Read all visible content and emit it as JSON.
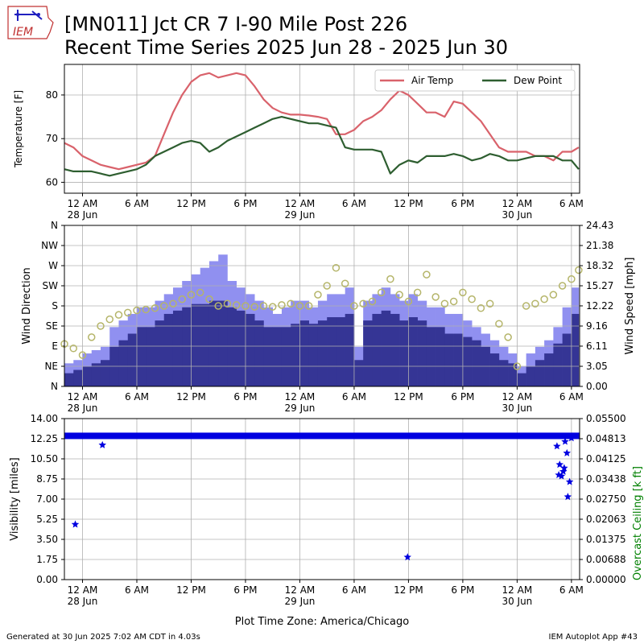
{
  "header": {
    "title_line1": "[MN011] Jct CR 7 I-90 Mile Post 226",
    "title_line2": "Recent Time Series 2025 Jun 28 - 2025 Jun 30",
    "logo_text": "IEM"
  },
  "footer": {
    "generated": "Generated at 30 Jun 2025 7:02 AM CDT in 4.03s",
    "app": "IEM Autoplot App #43",
    "xlabel": "Plot Time Zone: America/Chicago"
  },
  "colors": {
    "air_temp": "#d9626b",
    "dew_point": "#2e5e30",
    "wind_gust": "#9090f0",
    "wind_speed": "#353595",
    "wind_dir": "#b5b56a",
    "visibility": "#0000e0",
    "ceiling_axis": "#008000",
    "grid": "#b0b0b0"
  },
  "chart_data": [
    {
      "type": "line",
      "id": "temperature",
      "ylabel": "Temperature [F]",
      "yticks": [
        60,
        70,
        80
      ],
      "ylim": [
        57.5,
        87
      ],
      "xlim_hours": [
        -2,
        54.9
      ],
      "xticks": [
        {
          "h": 0,
          "label": "12 AM",
          "sub": "28 Jun"
        },
        {
          "h": 6,
          "label": "6 AM"
        },
        {
          "h": 12,
          "label": "12 PM"
        },
        {
          "h": 18,
          "label": "6 PM"
        },
        {
          "h": 24,
          "label": "12 AM",
          "sub": "29 Jun"
        },
        {
          "h": 30,
          "label": "6 AM"
        },
        {
          "h": 36,
          "label": "12 PM"
        },
        {
          "h": 42,
          "label": "6 PM"
        },
        {
          "h": 48,
          "label": "12 AM",
          "sub": "30 Jun"
        },
        {
          "h": 54,
          "label": "6 AM"
        }
      ],
      "legend": {
        "position": "upper right",
        "ncol": 2
      },
      "series": [
        {
          "name": "Air Temp",
          "x": [
            -2,
            -1,
            0,
            1,
            2,
            3,
            4,
            5,
            6,
            7,
            8,
            9,
            10,
            11,
            12,
            13,
            14,
            15,
            16,
            17,
            18,
            19,
            20,
            21,
            22,
            23,
            24,
            25,
            26,
            27,
            28,
            29,
            30,
            31,
            32,
            33,
            34,
            35,
            36,
            37,
            38,
            39,
            40,
            41,
            42,
            43,
            44,
            45,
            46,
            47,
            48,
            49,
            50,
            51,
            52,
            53,
            54,
            54.8
          ],
          "y": [
            69,
            68,
            66,
            65,
            64,
            63.5,
            63,
            63.5,
            64,
            64.5,
            66,
            71,
            76,
            80,
            83,
            84.5,
            85,
            84,
            84.5,
            85,
            84.5,
            82,
            79,
            77,
            76,
            75.5,
            75.5,
            75.3,
            75,
            74.5,
            71,
            71,
            72,
            74,
            75,
            76.5,
            79,
            81,
            80,
            78,
            76,
            76,
            75,
            78.5,
            78,
            76,
            74,
            71,
            68,
            67,
            67,
            67,
            66,
            66,
            65,
            67,
            67,
            68
          ]
        },
        {
          "name": "Dew Point",
          "x": [
            -2,
            -1,
            0,
            1,
            2,
            3,
            4,
            5,
            6,
            7,
            8,
            9,
            10,
            11,
            12,
            13,
            14,
            15,
            16,
            17,
            18,
            19,
            20,
            21,
            22,
            23,
            24,
            25,
            26,
            27,
            28,
            29,
            30,
            31,
            32,
            33,
            34,
            35,
            36,
            37,
            38,
            39,
            40,
            41,
            42,
            43,
            44,
            45,
            46,
            47,
            48,
            49,
            50,
            51,
            52,
            53,
            54,
            54.8
          ],
          "y": [
            63,
            62.5,
            62.5,
            62.5,
            62,
            61.5,
            62,
            62.5,
            63,
            64,
            66,
            67,
            68,
            69,
            69.5,
            69,
            67,
            68,
            69.5,
            70.5,
            71.5,
            72.5,
            73.5,
            74.5,
            75,
            74.5,
            74,
            73.5,
            73.5,
            73,
            72.5,
            68,
            67.5,
            67.5,
            67.5,
            67,
            62,
            64,
            65,
            64.5,
            66,
            66,
            66,
            66.5,
            66,
            65,
            65.5,
            66.5,
            66,
            65,
            65,
            65.5,
            66,
            66,
            66,
            65,
            65,
            63
          ]
        }
      ]
    },
    {
      "type": "bar",
      "id": "wind",
      "ylabel": "Wind Direction",
      "ylabel_right": "Wind Speed [mph]",
      "dir_ticks": [
        "N",
        "NE",
        "E",
        "SE",
        "S",
        "SW",
        "W",
        "NW",
        "N"
      ],
      "dir_ylim": [
        0,
        360
      ],
      "speed_ticks": [
        0.0,
        3.05,
        6.11,
        9.16,
        12.22,
        15.27,
        18.32,
        21.38,
        24.43
      ],
      "speed_ylim": [
        0,
        24.43
      ],
      "series": [
        {
          "name": "Gust",
          "x": [
            -2,
            -1,
            0,
            1,
            2,
            3,
            4,
            5,
            6,
            7,
            8,
            9,
            10,
            11,
            12,
            13,
            14,
            15,
            16,
            17,
            18,
            19,
            20,
            21,
            22,
            23,
            24,
            25,
            26,
            27,
            28,
            29,
            30,
            31,
            32,
            33,
            34,
            35,
            36,
            37,
            38,
            39,
            40,
            41,
            42,
            43,
            44,
            45,
            46,
            47,
            48,
            49,
            50,
            51,
            52,
            53,
            54,
            54.8
          ],
          "y": [
            3.5,
            4,
            5,
            5.5,
            6,
            9,
            10,
            11,
            12,
            12,
            13,
            14,
            15,
            16,
            17,
            18,
            19,
            20,
            16,
            15,
            14,
            13,
            12,
            11,
            12,
            13,
            13,
            12,
            13,
            14,
            14,
            15,
            6,
            13,
            14,
            15,
            14,
            13,
            14,
            13,
            12,
            12,
            11,
            11,
            10,
            9,
            8,
            7,
            6,
            5,
            3,
            5,
            6,
            7,
            9,
            12,
            15,
            18
          ]
        },
        {
          "name": "Speed",
          "x": [
            -2,
            -1,
            0,
            1,
            2,
            3,
            4,
            5,
            6,
            7,
            8,
            9,
            10,
            11,
            12,
            13,
            14,
            15,
            16,
            17,
            18,
            19,
            20,
            21,
            22,
            23,
            24,
            25,
            26,
            27,
            28,
            29,
            30,
            31,
            32,
            33,
            34,
            35,
            36,
            37,
            38,
            39,
            40,
            41,
            42,
            43,
            44,
            45,
            46,
            47,
            48,
            49,
            50,
            51,
            52,
            53,
            54,
            54.8
          ],
          "y": [
            2,
            2.5,
            3,
            3.5,
            4,
            6,
            7,
            8,
            9,
            9,
            10,
            11,
            11.5,
            12,
            12.5,
            12.5,
            13,
            13,
            12,
            11.5,
            11,
            10,
            9,
            9,
            9,
            9.5,
            10,
            9.5,
            10,
            10.5,
            10.5,
            11,
            4,
            10,
            11,
            11.5,
            11,
            10,
            10.5,
            10,
            9,
            9,
            8,
            8,
            7.5,
            7,
            6,
            5,
            4,
            3.5,
            2,
            3,
            4,
            5,
            6.5,
            8,
            11,
            14
          ]
        },
        {
          "name": "Direction",
          "x": [
            -2,
            -1,
            0,
            1,
            2,
            3,
            4,
            5,
            6,
            7,
            8,
            9,
            10,
            11,
            12,
            13,
            14,
            15,
            16,
            17,
            18,
            19,
            20,
            21,
            22,
            23,
            24,
            25,
            26,
            27,
            28,
            29,
            30,
            31,
            32,
            33,
            34,
            35,
            36,
            37,
            38,
            39,
            40,
            41,
            42,
            43,
            44,
            45,
            46,
            47,
            48,
            49,
            50,
            51,
            52,
            53,
            54,
            54.8
          ],
          "y": [
            95,
            85,
            70,
            110,
            135,
            150,
            160,
            165,
            170,
            172,
            175,
            180,
            185,
            195,
            205,
            210,
            195,
            180,
            185,
            182,
            180,
            178,
            180,
            178,
            182,
            185,
            180,
            180,
            205,
            225,
            265,
            230,
            180,
            185,
            190,
            210,
            240,
            205,
            190,
            210,
            250,
            200,
            185,
            190,
            210,
            195,
            175,
            185,
            140,
            110,
            45,
            180,
            185,
            195,
            205,
            225,
            240,
            260
          ]
        }
      ]
    },
    {
      "type": "scatter",
      "id": "visibility",
      "ylabel": "Visibility [miles]",
      "ylabel_right": "Overcast Ceiling [k ft]",
      "vis_ticks": [
        "0.00",
        "1.75",
        "3.50",
        "5.25",
        "7.00",
        "8.75",
        "10.50",
        "12.25",
        "14.00"
      ],
      "vis_ylim": [
        0,
        14
      ],
      "ceiling_ticks": [
        "0.00000",
        "0.00688",
        "0.01375",
        "0.02063",
        "0.02750",
        "0.03438",
        "0.04125",
        "0.04813",
        "0.05500"
      ],
      "ceiling_ylim": [
        0,
        0.055
      ],
      "baseline_value": 12.5,
      "baseline_x_range": [
        -2,
        54.9
      ],
      "outliers_x": [
        -0.8,
        2.2,
        35.9,
        52.4,
        52.7,
        52.9,
        53.1,
        53.3,
        53.5,
        53.2,
        52.6,
        53.8,
        54.0,
        53.6
      ],
      "outliers_y": [
        4.8,
        11.7,
        1.95,
        11.6,
        10.0,
        9.0,
        9.4,
        12.0,
        11.0,
        9.7,
        9.1,
        8.5,
        12.3,
        7.2
      ]
    }
  ]
}
